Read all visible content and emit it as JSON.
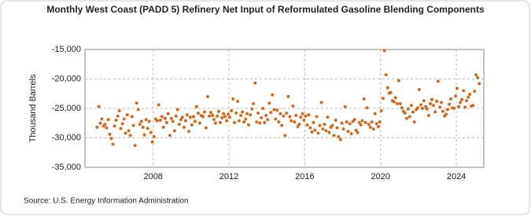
{
  "chart_data": {
    "type": "scatter",
    "title": "Monthly West Coast (PADD 5) Refinery Net Input of Reformulated Gasoline Blending Components",
    "y_label": "Thousand Barrels",
    "source": "Source: U.S. Energy Information Administration",
    "color": "#d2691e",
    "grid": true,
    "xlim": [
      2004.4,
      2025.45
    ],
    "xticks": [
      2008,
      2012,
      2016,
      2020,
      2024
    ],
    "ylim": [
      -35000,
      -15000
    ],
    "yticks": [
      {
        "value": -35000,
        "label": "-35,000"
      },
      {
        "value": -30000,
        "label": "-30,000"
      },
      {
        "value": -25000,
        "label": "-25,000"
      },
      {
        "value": -20000,
        "label": "-20,000"
      },
      {
        "value": -15000,
        "label": "-15,000"
      }
    ],
    "x": [
      2005.04,
      2005.13,
      2005.21,
      2005.29,
      2005.38,
      2005.46,
      2005.54,
      2005.63,
      2005.71,
      2005.79,
      2005.88,
      2005.96,
      2006.04,
      2006.13,
      2006.21,
      2006.29,
      2006.38,
      2006.46,
      2006.54,
      2006.63,
      2006.71,
      2006.79,
      2006.88,
      2006.96,
      2007.04,
      2007.13,
      2007.21,
      2007.29,
      2007.38,
      2007.46,
      2007.54,
      2007.63,
      2007.71,
      2007.79,
      2007.88,
      2007.96,
      2008.04,
      2008.13,
      2008.21,
      2008.29,
      2008.38,
      2008.46,
      2008.54,
      2008.63,
      2008.71,
      2008.79,
      2008.88,
      2008.96,
      2009.04,
      2009.13,
      2009.21,
      2009.29,
      2009.38,
      2009.46,
      2009.54,
      2009.63,
      2009.71,
      2009.79,
      2009.88,
      2009.96,
      2010.04,
      2010.13,
      2010.21,
      2010.29,
      2010.38,
      2010.46,
      2010.54,
      2010.63,
      2010.71,
      2010.79,
      2010.88,
      2010.96,
      2011.04,
      2011.13,
      2011.21,
      2011.29,
      2011.38,
      2011.46,
      2011.54,
      2011.63,
      2011.71,
      2011.79,
      2011.88,
      2011.96,
      2012.04,
      2012.13,
      2012.21,
      2012.29,
      2012.38,
      2012.46,
      2012.54,
      2012.63,
      2012.71,
      2012.79,
      2012.88,
      2012.96,
      2013.04,
      2013.13,
      2013.21,
      2013.29,
      2013.38,
      2013.46,
      2013.54,
      2013.63,
      2013.71,
      2013.79,
      2013.88,
      2013.96,
      2014.04,
      2014.13,
      2014.21,
      2014.29,
      2014.38,
      2014.46,
      2014.54,
      2014.63,
      2014.71,
      2014.79,
      2014.88,
      2014.96,
      2015.04,
      2015.13,
      2015.21,
      2015.29,
      2015.38,
      2015.46,
      2015.54,
      2015.63,
      2015.71,
      2015.79,
      2015.88,
      2015.96,
      2016.04,
      2016.13,
      2016.21,
      2016.29,
      2016.38,
      2016.46,
      2016.54,
      2016.63,
      2016.71,
      2016.79,
      2016.88,
      2016.96,
      2017.04,
      2017.13,
      2017.21,
      2017.29,
      2017.38,
      2017.46,
      2017.54,
      2017.63,
      2017.71,
      2017.79,
      2017.88,
      2017.96,
      2018.04,
      2018.13,
      2018.21,
      2018.29,
      2018.38,
      2018.46,
      2018.54,
      2018.63,
      2018.71,
      2018.79,
      2018.88,
      2018.96,
      2019.04,
      2019.13,
      2019.21,
      2019.29,
      2019.38,
      2019.46,
      2019.54,
      2019.63,
      2019.71,
      2019.79,
      2019.88,
      2019.96,
      2020.04,
      2020.13,
      2020.21,
      2020.29,
      2020.38,
      2020.46,
      2020.54,
      2020.63,
      2020.71,
      2020.79,
      2020.88,
      2020.96,
      2021.04,
      2021.13,
      2021.21,
      2021.29,
      2021.38,
      2021.46,
      2021.54,
      2021.63,
      2021.71,
      2021.79,
      2021.88,
      2021.96,
      2022.04,
      2022.13,
      2022.21,
      2022.29,
      2022.38,
      2022.46,
      2022.54,
      2022.63,
      2022.71,
      2022.79,
      2022.88,
      2022.96,
      2023.04,
      2023.13,
      2023.21,
      2023.29,
      2023.38,
      2023.46,
      2023.54,
      2023.63,
      2023.71,
      2023.79,
      2023.88,
      2023.96,
      2024.04,
      2024.13,
      2024.21,
      2024.29,
      2024.38,
      2024.46,
      2024.54,
      2024.63,
      2024.71,
      2024.79,
      2024.88,
      2024.96,
      2025.04,
      2025.13,
      2025.21
    ],
    "values": [
      -28200,
      -24700,
      -27500,
      -26800,
      -28000,
      -27700,
      -28300,
      -26900,
      -29400,
      -30100,
      -31100,
      -28000,
      -27000,
      -26300,
      -25400,
      -28400,
      -27600,
      -26800,
      -29200,
      -26100,
      -28800,
      -29600,
      -26400,
      -27900,
      -31300,
      -24100,
      -25200,
      -27700,
      -27200,
      -28200,
      -29500,
      -26900,
      -28400,
      -27200,
      -29100,
      -30700,
      -29800,
      -26800,
      -27100,
      -24400,
      -27000,
      -26400,
      -28200,
      -26700,
      -27400,
      -25900,
      -29600,
      -26700,
      -27200,
      -28800,
      -26300,
      -25200,
      -27700,
      -26900,
      -26500,
      -28200,
      -27100,
      -26100,
      -28900,
      -26500,
      -27800,
      -26400,
      -27200,
      -24700,
      -25800,
      -27500,
      -26200,
      -26400,
      -25600,
      -28300,
      -23000,
      -26300,
      -25700,
      -26200,
      -26900,
      -27500,
      -26300,
      -25500,
      -27400,
      -26600,
      -25900,
      -26400,
      -27100,
      -26000,
      -26500,
      -25400,
      -23400,
      -27400,
      -25800,
      -23800,
      -27100,
      -26200,
      -25600,
      -27300,
      -26800,
      -25900,
      -27800,
      -26100,
      -25100,
      -24200,
      -20700,
      -27300,
      -25800,
      -27500,
      -26600,
      -25000,
      -27400,
      -26200,
      -26900,
      -24100,
      -25700,
      -22700,
      -25200,
      -26800,
      -25300,
      -27300,
      -25900,
      -27900,
      -26300,
      -29600,
      -25800,
      -23000,
      -26400,
      -27100,
      -24600,
      -27300,
      -26200,
      -28100,
      -27700,
      -26500,
      -25900,
      -27000,
      -26300,
      -27800,
      -26100,
      -28300,
      -29000,
      -27400,
      -28700,
      -26400,
      -29200,
      -27900,
      -24000,
      -28500,
      -27700,
      -28800,
      -26500,
      -29100,
      -28200,
      -27900,
      -29600,
      -27000,
      -28300,
      -29800,
      -30300,
      -27500,
      -28500,
      -24700,
      -27300,
      -28900,
      -27600,
      -29300,
      -27200,
      -26900,
      -28700,
      -29100,
      -27400,
      -27800,
      -27100,
      -23400,
      -27400,
      -24900,
      -27700,
      -28200,
      -27300,
      -28500,
      -25900,
      -27600,
      -28100,
      -27300,
      -25400,
      -23300,
      -15200,
      -19300,
      -21500,
      -22400,
      -22300,
      -23700,
      -23900,
      -23200,
      -24200,
      -20300,
      -24200,
      -24900,
      -25500,
      -25800,
      -26700,
      -25100,
      -26400,
      -24500,
      -25600,
      -27300,
      -25200,
      -24900,
      -21800,
      -24400,
      -25000,
      -23700,
      -24700,
      -25100,
      -26200,
      -24200,
      -23500,
      -24500,
      -25600,
      -23800,
      -20400,
      -24800,
      -24000,
      -25500,
      -26300,
      -26000,
      -25200,
      -24300,
      -23400,
      -24900,
      -25000,
      -22900,
      -21600,
      -24700,
      -24000,
      -23500,
      -22000,
      -24800,
      -23700,
      -23100,
      -22600,
      -24600,
      -24500,
      -22100,
      -19300,
      -19800,
      -20800
    ]
  }
}
